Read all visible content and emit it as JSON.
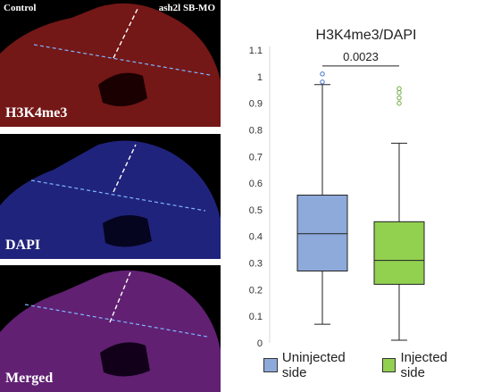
{
  "panels": {
    "control_label": "Control",
    "treatment_label": "ash2l SB-MO",
    "items": [
      {
        "label": "H3K4me3",
        "color": "#d42a2a"
      },
      {
        "label": "DAPI",
        "color": "#3a40e0"
      },
      {
        "label": "Merged",
        "color": "#b03ad0"
      }
    ]
  },
  "chart_data": {
    "type": "box",
    "title": "H3K4me3/DAPI",
    "ylim": [
      0,
      1.1
    ],
    "yticks": [
      "0",
      "0.1",
      "0.2",
      "0.3",
      "0.4",
      "0.5",
      "0.6",
      "0.7",
      "0.8",
      "0.9",
      "1",
      "1.1"
    ],
    "series": [
      {
        "name": "Uninjected side",
        "color": "#8eaadb",
        "min": 0.07,
        "q1": 0.27,
        "median": 0.41,
        "q3": 0.555,
        "max": 0.97,
        "outliers": [
          0.98,
          1.01
        ]
      },
      {
        "name": "Injected side",
        "color": "#92d050",
        "min": 0.01,
        "q1": 0.22,
        "median": 0.31,
        "q3": 0.455,
        "max": 0.75,
        "outliers": [
          0.9,
          0.92,
          0.94,
          0.955
        ]
      }
    ],
    "annotation": "0.0023"
  }
}
